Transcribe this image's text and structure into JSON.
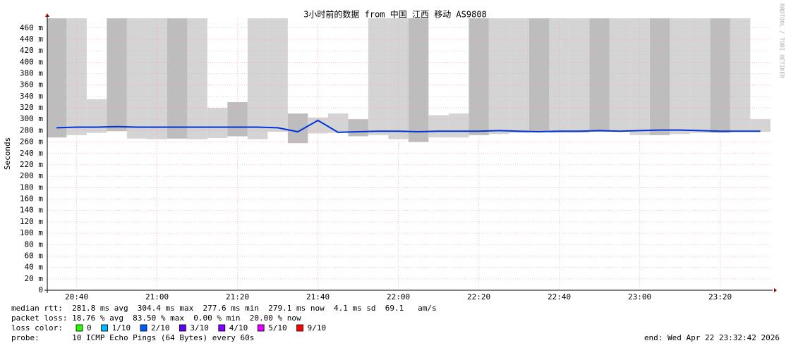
{
  "chart_data": {
    "type": "smokeline",
    "title": "3小时前的数据 from 中国 江西 移动 AS9808",
    "y_label": "Seconds",
    "watermark": "RRDTOOL / TOBI OETIKER",
    "xlim": [
      1232.7,
      1412.7
    ],
    "xticks": [
      {
        "value": 1240,
        "label": "20:40"
      },
      {
        "value": 1260,
        "label": "21:00"
      },
      {
        "value": 1280,
        "label": "21:20"
      },
      {
        "value": 1300,
        "label": "21:40"
      },
      {
        "value": 1320,
        "label": "22:00"
      },
      {
        "value": 1340,
        "label": "22:20"
      },
      {
        "value": 1360,
        "label": "22:40"
      },
      {
        "value": 1380,
        "label": "23:00"
      },
      {
        "value": 1400,
        "label": "23:20"
      }
    ],
    "ylim": [
      0,
      0.477
    ],
    "yticks": [
      0,
      {
        "value": 0.02,
        "label": "20 m"
      },
      {
        "value": 0.04,
        "label": "40 m"
      },
      {
        "value": 0.06,
        "label": "60 m"
      },
      {
        "value": 0.08,
        "label": "80 m"
      },
      {
        "value": 0.1,
        "label": "100 m"
      },
      {
        "value": 0.12,
        "label": "120 m"
      },
      {
        "value": 0.14,
        "label": "140 m"
      },
      {
        "value": 0.16,
        "label": "160 m"
      },
      {
        "value": 0.18,
        "label": "180 m"
      },
      {
        "value": 0.2,
        "label": "200 m"
      },
      {
        "value": 0.22,
        "label": "220 m"
      },
      {
        "value": 0.24,
        "label": "240 m"
      },
      {
        "value": 0.26,
        "label": "260 m"
      },
      {
        "value": 0.28,
        "label": "280 m"
      },
      {
        "value": 0.3,
        "label": "300 m"
      },
      {
        "value": 0.32,
        "label": "320 m"
      },
      {
        "value": 0.34,
        "label": "340 m"
      },
      {
        "value": 0.36,
        "label": "360 m"
      },
      {
        "value": 0.38,
        "label": "380 m"
      },
      {
        "value": 0.4,
        "label": "400 m"
      },
      {
        "value": 0.42,
        "label": "420 m"
      },
      {
        "value": 0.44,
        "label": "440 m"
      },
      {
        "value": 0.46,
        "label": "460 m"
      }
    ],
    "grid": true,
    "x": [
      1235,
      1240,
      1245,
      1250,
      1255,
      1260,
      1265,
      1270,
      1275,
      1280,
      1285,
      1290,
      1295,
      1300,
      1305,
      1310,
      1315,
      1320,
      1325,
      1330,
      1335,
      1340,
      1345,
      1350,
      1355,
      1360,
      1365,
      1370,
      1375,
      1380,
      1385,
      1390,
      1395,
      1400,
      1405,
      1410
    ],
    "series": [
      {
        "name": "median rtt",
        "color": "#0033dd",
        "values": [
          0.285,
          0.286,
          0.286,
          0.287,
          0.286,
          0.286,
          0.286,
          0.286,
          0.286,
          0.286,
          0.286,
          0.285,
          0.278,
          0.298,
          0.277,
          0.278,
          0.279,
          0.279,
          0.278,
          0.279,
          0.279,
          0.279,
          0.28,
          0.279,
          0.278,
          0.279,
          0.279,
          0.28,
          0.279,
          0.28,
          0.281,
          0.281,
          0.28,
          0.279,
          0.279,
          0.279
        ],
        "smoke_min": [
          0.268,
          0.272,
          0.276,
          0.279,
          0.266,
          0.265,
          0.266,
          0.265,
          0.267,
          0.27,
          0.265,
          0.278,
          0.258,
          0.275,
          0.276,
          0.27,
          0.272,
          0.265,
          0.26,
          0.268,
          0.268,
          0.272,
          0.274,
          0.276,
          0.278,
          0.276,
          0.276,
          0.278,
          0.278,
          0.272,
          0.272,
          0.274,
          0.276,
          0.276,
          0.278,
          0.278
        ],
        "smoke_max": [
          0.477,
          0.477,
          0.335,
          0.477,
          0.477,
          0.477,
          0.477,
          0.477,
          0.32,
          0.33,
          0.477,
          0.477,
          0.31,
          0.303,
          0.31,
          0.3,
          0.477,
          0.477,
          0.477,
          0.307,
          0.31,
          0.477,
          0.477,
          0.477,
          0.477,
          0.477,
          0.477,
          0.477,
          0.477,
          0.477,
          0.477,
          0.477,
          0.477,
          0.477,
          0.477,
          0.3
        ]
      }
    ],
    "loss_label": "loss color:",
    "loss_colors": [
      {
        "name": "0",
        "color": "#26ff00"
      },
      {
        "name": "1/10",
        "color": "#00b8ff"
      },
      {
        "name": "2/10",
        "color": "#0059ff"
      },
      {
        "name": "3/10",
        "color": "#5e00ff"
      },
      {
        "name": "4/10",
        "color": "#7e00ff"
      },
      {
        "name": "5/10",
        "color": "#dd00ff"
      },
      {
        "name": "9/10",
        "color": "#ff0000"
      }
    ],
    "stats": [
      "median rtt:  281.8 ms avg  304.4 ms max  277.6 ms min  279.1 ms now  4.1 ms sd  69.1   am/s",
      "packet loss: 18.76 % avg  83.50 % max  0.00 % min  20.00 % now"
    ],
    "probe": "probe:       10 ICMP Echo Pings (64 Bytes) every 60s",
    "end": "end: Wed Apr 22 23:32:42 2026"
  }
}
